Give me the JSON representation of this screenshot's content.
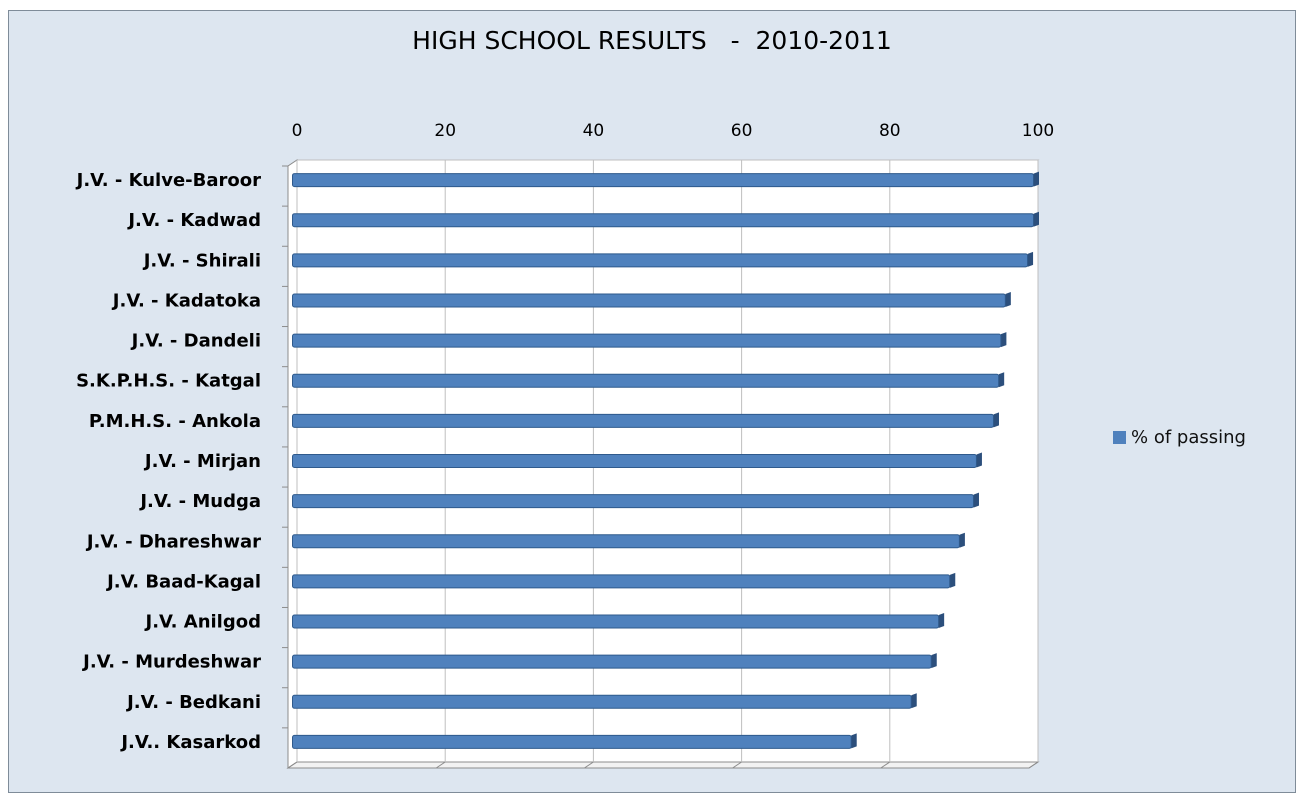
{
  "chart_data": {
    "type": "bar",
    "orientation": "horizontal",
    "title": "HIGH SCHOOL RESULTS   -  2010-2011",
    "xlim": [
      0,
      100
    ],
    "x_ticks": [
      0,
      20,
      40,
      60,
      80,
      100
    ],
    "x_axis_position": "top",
    "grid": true,
    "legend_position": "right",
    "categories": [
      "J.V. -  Kulve-Baroor",
      "J.V. -  Kadwad",
      "J.V. -  Shirali",
      "J.V. -  Kadatoka",
      "J.V. -  Dandeli",
      "S.K.P.H.S. -  Katgal",
      "P.M.H.S. -  Ankola",
      "J.V. -  Mirjan",
      "J.V. -  Mudga",
      "J.V. -  Dhareshwar",
      "J.V. Baad-Kagal",
      "J.V. Anilgod",
      "J.V. -  Murdeshwar",
      "J.V. -  Bedkani",
      "J.V.. Kasarkod"
    ],
    "series": [
      {
        "name": "% of passing",
        "color": "#4f81bd",
        "values": [
          100,
          100,
          99.2,
          96.2,
          95.6,
          95.3,
          94.6,
          92.3,
          91.9,
          90,
          88.7,
          87.2,
          86.2,
          83.5,
          75.4
        ]
      }
    ]
  }
}
